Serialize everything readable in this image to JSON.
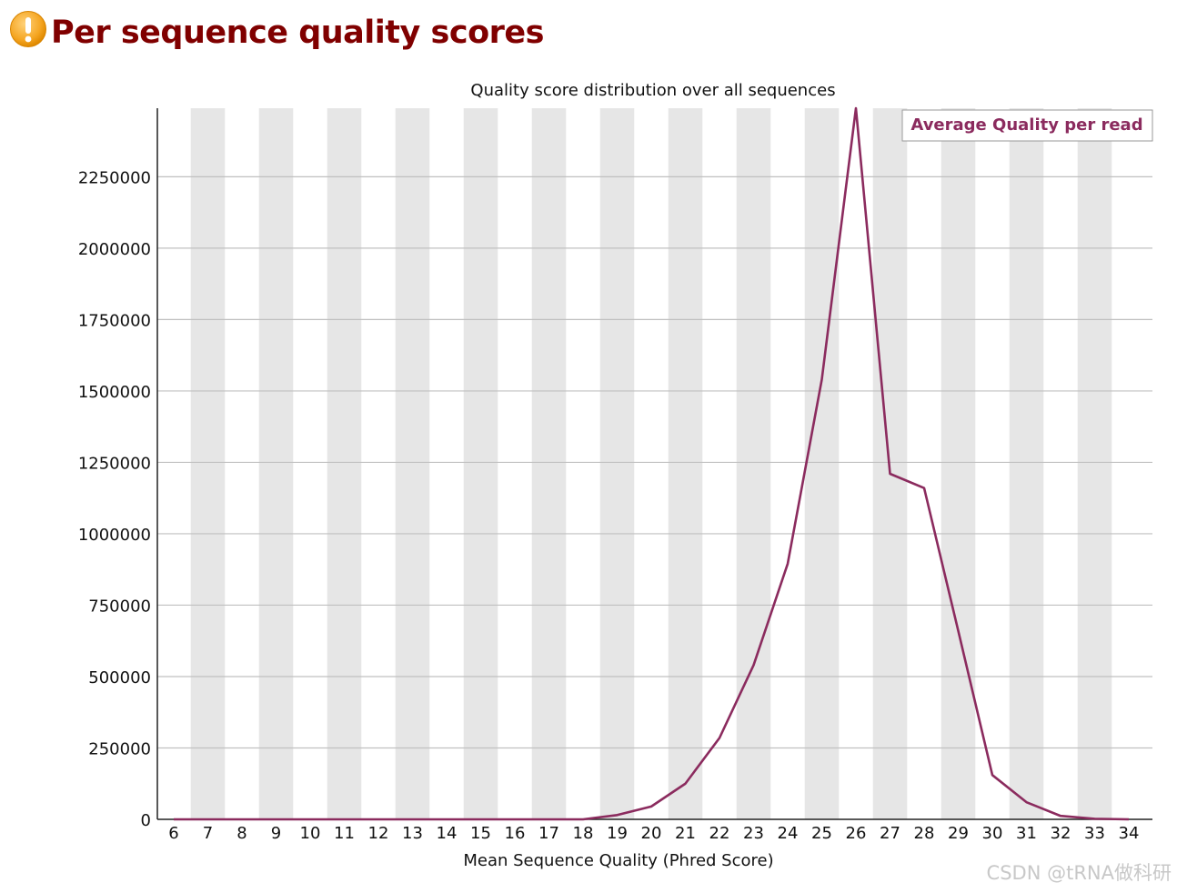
{
  "page": {
    "title": "Per sequence quality scores",
    "status_icon": "warning-icon",
    "watermark": "CSDN @tRNA做科研"
  },
  "colors": {
    "title": "#800000",
    "line": "#8b2b5e",
    "band": "#e6e6e6",
    "grid": "#c0c0c0",
    "warning_icon": "#f5a623"
  },
  "chart_data": {
    "type": "line",
    "title": "Quality score distribution over all sequences",
    "xlabel": "Mean Sequence Quality (Phred Score)",
    "ylabel": "",
    "x": [
      6,
      7,
      8,
      9,
      10,
      11,
      12,
      13,
      14,
      15,
      16,
      17,
      18,
      19,
      20,
      21,
      22,
      23,
      24,
      25,
      26,
      27,
      28,
      29,
      30,
      31,
      32,
      33,
      34
    ],
    "series": [
      {
        "name": "Average Quality per read",
        "values": [
          0,
          0,
          0,
          0,
          0,
          0,
          0,
          0,
          0,
          0,
          0,
          0,
          0,
          15000,
          45000,
          125000,
          285000,
          540000,
          895000,
          1540000,
          2490000,
          1210000,
          1160000,
          660000,
          155000,
          60000,
          12000,
          2000,
          0
        ]
      }
    ],
    "x_ticks": [
      "6",
      "7",
      "8",
      "9",
      "10",
      "11",
      "12",
      "13",
      "14",
      "15",
      "16",
      "17",
      "18",
      "19",
      "20",
      "21",
      "22",
      "23",
      "24",
      "25",
      "26",
      "27",
      "28",
      "29",
      "30",
      "31",
      "32",
      "33",
      "34"
    ],
    "y_ticks": [
      0,
      250000,
      500000,
      750000,
      1000000,
      1250000,
      1500000,
      1750000,
      2000000,
      2250000
    ],
    "ylim": [
      0,
      2490000
    ],
    "grid": true,
    "legend_position": "top-right"
  }
}
